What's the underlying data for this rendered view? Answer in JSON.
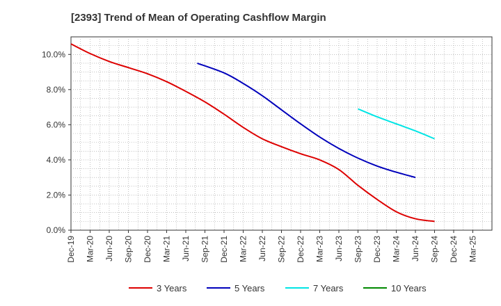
{
  "chart_data": {
    "type": "line",
    "title": "[2393]  Trend of Mean of Operating Cashflow Margin",
    "xlabel": "",
    "ylabel": "",
    "ylim": [
      0,
      11
    ],
    "y_ticks": [
      0,
      2,
      4,
      6,
      8,
      10
    ],
    "y_tick_labels": [
      "0.0%",
      "2.0%",
      "4.0%",
      "6.0%",
      "8.0%",
      "10.0%"
    ],
    "categories": [
      "Dec-19",
      "Mar-20",
      "Jun-20",
      "Sep-20",
      "Dec-20",
      "Mar-21",
      "Jun-21",
      "Sep-21",
      "Dec-21",
      "Mar-22",
      "Jun-22",
      "Sep-22",
      "Dec-22",
      "Mar-23",
      "Jun-23",
      "Sep-23",
      "Dec-23",
      "Mar-24",
      "Jun-24",
      "Sep-24",
      "Dec-24",
      "Mar-25"
    ],
    "grid": true,
    "legend_position": "bottom",
    "series": [
      {
        "name": "3 Years",
        "color": "#dd0000",
        "values": [
          10.6,
          10.05,
          9.6,
          9.25,
          8.9,
          8.45,
          7.9,
          7.3,
          6.6,
          5.85,
          5.2,
          4.75,
          4.35,
          4.0,
          3.45,
          2.55,
          1.75,
          1.05,
          0.65,
          0.5,
          null,
          null
        ]
      },
      {
        "name": "5 Years",
        "color": "#0000bb",
        "values": [
          null,
          null,
          null,
          null,
          null,
          null,
          null,
          9.5,
          8.95,
          8.35,
          7.65,
          6.85,
          6.05,
          5.3,
          4.65,
          4.1,
          3.65,
          3.3,
          3.0,
          null,
          null,
          null
        ],
        "_note": "series starts at index 6.5-ish; values aligned to categories from Sep-21"
      },
      {
        "name": "7 Years",
        "color": "#00e5e5",
        "values": [
          null,
          null,
          null,
          null,
          null,
          null,
          null,
          null,
          null,
          null,
          null,
          null,
          null,
          null,
          null,
          6.9,
          6.45,
          6.05,
          5.65,
          5.2,
          null,
          null
        ]
      },
      {
        "name": "10 Years",
        "color": "#008800",
        "values": [
          null,
          null,
          null,
          null,
          null,
          null,
          null,
          null,
          null,
          null,
          null,
          null,
          null,
          null,
          null,
          null,
          null,
          null,
          null,
          null,
          null,
          null
        ]
      }
    ]
  }
}
